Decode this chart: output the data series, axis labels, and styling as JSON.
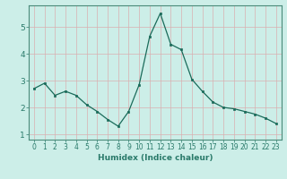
{
  "x": [
    0,
    1,
    2,
    3,
    4,
    5,
    6,
    7,
    8,
    9,
    10,
    11,
    12,
    13,
    14,
    15,
    16,
    17,
    18,
    19,
    20,
    21,
    22,
    23
  ],
  "y": [
    2.7,
    2.9,
    2.45,
    2.6,
    2.45,
    2.1,
    1.85,
    1.55,
    1.3,
    1.85,
    2.85,
    4.65,
    5.5,
    4.35,
    4.15,
    3.05,
    2.6,
    2.2,
    2.0,
    1.95,
    1.85,
    1.75,
    1.6,
    1.4
  ],
  "xlabel": "Humidex (Indice chaleur)",
  "bg_color": "#cceee8",
  "grid_color": "#d9b0b0",
  "line_color": "#1a6b5a",
  "marker_color": "#1a6b5a",
  "xlim": [
    -0.5,
    23.5
  ],
  "ylim": [
    0.8,
    5.8
  ],
  "yticks": [
    1,
    2,
    3,
    4,
    5
  ],
  "xticks": [
    0,
    1,
    2,
    3,
    4,
    5,
    6,
    7,
    8,
    9,
    10,
    11,
    12,
    13,
    14,
    15,
    16,
    17,
    18,
    19,
    20,
    21,
    22,
    23
  ],
  "xtick_labels": [
    "0",
    "1",
    "2",
    "3",
    "4",
    "5",
    "6",
    "7",
    "8",
    "9",
    "10",
    "11",
    "12",
    "13",
    "14",
    "15",
    "16",
    "17",
    "18",
    "19",
    "20",
    "21",
    "22",
    "23"
  ],
  "xlabel_fontsize": 6.5,
  "tick_fontsize": 5.5,
  "ytick_fontsize": 6.5,
  "axis_color": "#2a7a6a",
  "spine_color": "#4a8a7a"
}
